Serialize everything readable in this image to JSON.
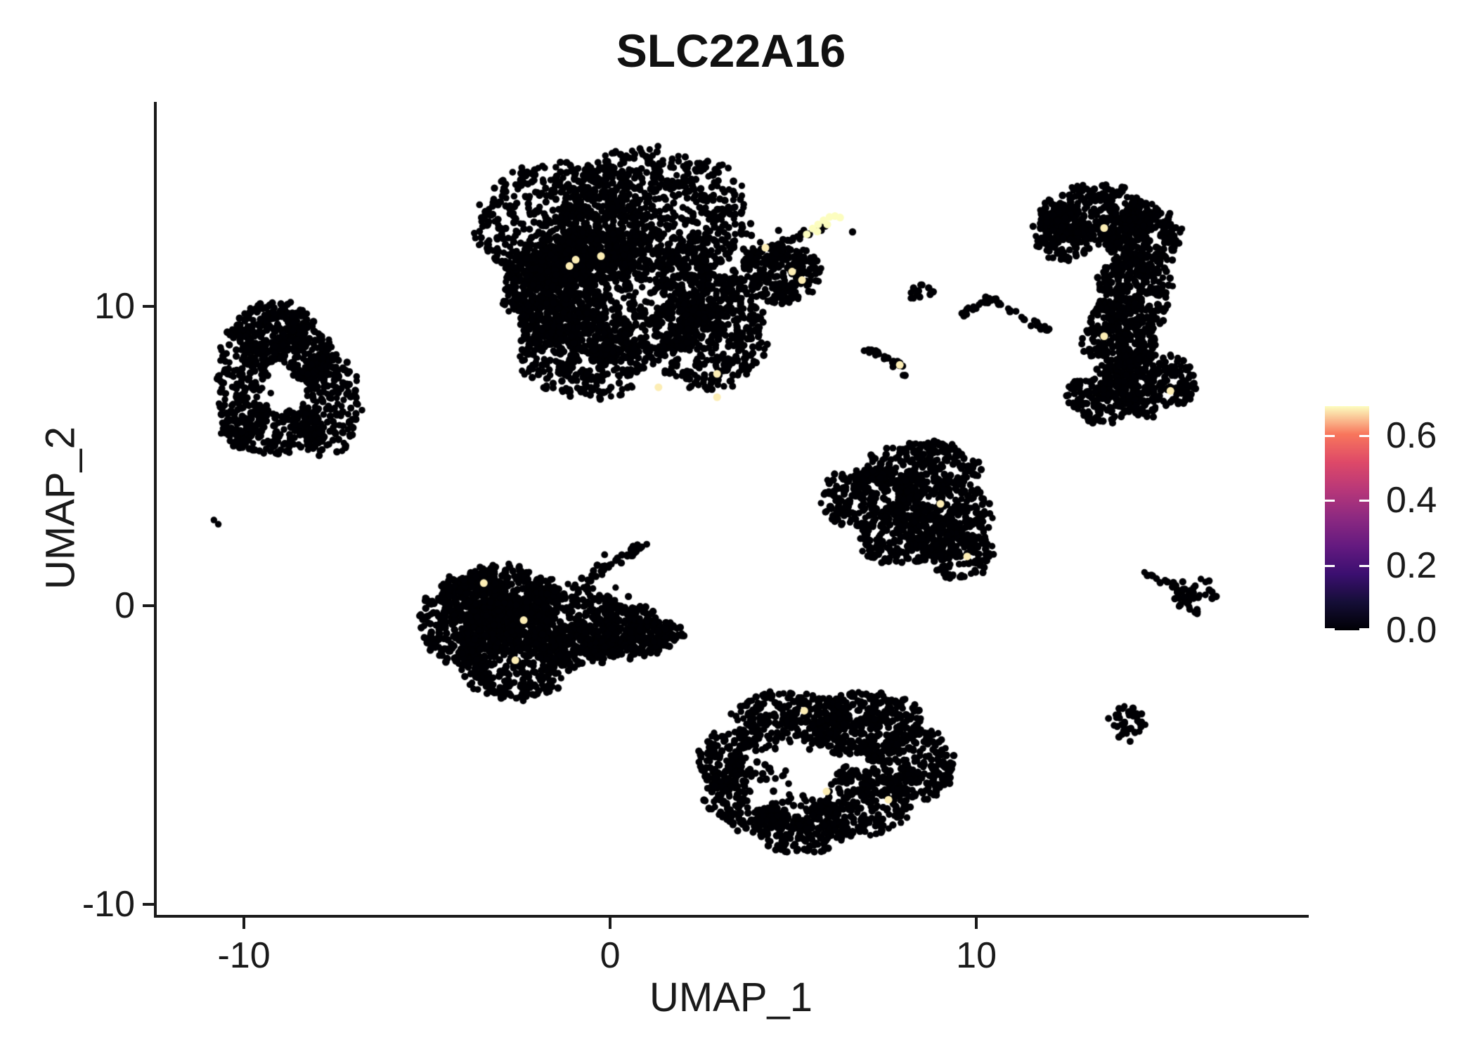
{
  "title": "SLC22A16",
  "axes": {
    "xlabel": "UMAP_1",
    "ylabel": "UMAP_2",
    "xticks": [
      -10,
      0,
      10
    ],
    "yticks": [
      -10,
      0,
      10
    ],
    "xlim": [
      -12.4,
      19.0
    ],
    "ylim": [
      -10.35,
      16.85
    ]
  },
  "colorbar": {
    "tick_labels": [
      "0.6",
      "0.4",
      "0.2",
      "0.0"
    ],
    "tick_values": [
      0.6,
      0.4,
      0.2,
      0.0
    ],
    "vmin": 0.0,
    "vmax": 0.69,
    "gradient": [
      "#000004",
      "#150e37",
      "#3b0f70",
      "#641a80",
      "#8c2981",
      "#b73779",
      "#de4968",
      "#f8765c",
      "#fcfdbf"
    ]
  },
  "chart_data": {
    "type": "scatter",
    "title": "SLC22A16",
    "xlabel": "UMAP_1",
    "ylabel": "UMAP_2",
    "xlim": [
      -12.4,
      19.0
    ],
    "ylim": [
      -10.35,
      16.85
    ],
    "legend": "continuous colorbar, right side",
    "grid": false,
    "point_color_zero": "#000004",
    "point_radius_px": 5,
    "highlight_radius_px": 5.5,
    "clusters": [
      {
        "name": "top-main-blob",
        "ellipses": [
          [
            -1.3,
            12.7,
            2.3,
            2.0,
            600
          ],
          [
            1.2,
            13.0,
            2.5,
            2.2,
            700
          ],
          [
            0.2,
            10.4,
            2.9,
            2.1,
            800
          ],
          [
            2.7,
            9.2,
            1.5,
            1.9,
            450
          ],
          [
            -1.7,
            10.6,
            1.1,
            1.7,
            350
          ],
          [
            -0.6,
            8.4,
            1.8,
            1.4,
            380
          ]
        ],
        "paths": [
          [
            4.4,
            11.9,
            6.3,
            12.95,
            0.22,
            26
          ]
        ],
        "singles": [
          [
            2.0,
            14.7
          ],
          [
            2.3,
            13.9
          ],
          [
            2.6,
            13.3
          ],
          [
            3.0,
            12.6
          ],
          [
            3.4,
            12.2
          ],
          [
            6.62,
            12.5
          ],
          [
            4.6,
            12.55
          ],
          [
            5.0,
            12.3
          ],
          [
            3.7,
            11.6
          ]
        ]
      },
      {
        "name": "top-right-lobe",
        "ellipses": [
          [
            4.6,
            11.05,
            1.15,
            0.95,
            260
          ]
        ],
        "singles": [
          [
            3.9,
            11.95
          ],
          [
            4.1,
            12.15
          ]
        ]
      },
      {
        "name": "left-cluster",
        "ellipses": [
          [
            -9.2,
            9.2,
            1.05,
            0.95,
            200
          ],
          [
            -10.0,
            7.4,
            0.75,
            2.1,
            220
          ],
          [
            -9.2,
            5.9,
            1.35,
            0.85,
            220
          ],
          [
            -7.75,
            6.7,
            0.9,
            1.6,
            220
          ],
          [
            -8.35,
            8.4,
            0.85,
            0.85,
            160
          ]
        ],
        "holes": [
          [
            -8.9,
            7.1,
            0.62,
            0.12
          ]
        ],
        "singles": [
          [
            -8.1,
            9.5
          ]
        ]
      },
      {
        "name": "tiny-pair-left",
        "singles": [
          [
            -10.82,
            2.86
          ],
          [
            -10.7,
            2.72
          ]
        ]
      },
      {
        "name": "center-left-cluster",
        "ellipses": [
          [
            -3.8,
            -0.5,
            1.3,
            1.5,
            420
          ],
          [
            -2.6,
            -1.5,
            1.5,
            1.7,
            500
          ],
          [
            -2.9,
            0.3,
            1.5,
            1.0,
            360
          ],
          [
            -1.1,
            -0.7,
            1.6,
            1.3,
            420
          ],
          [
            0.3,
            -0.9,
            1.3,
            0.9,
            260
          ],
          [
            1.3,
            -0.9,
            0.7,
            0.5,
            90
          ]
        ],
        "paths": [
          [
            -0.7,
            0.8,
            0.85,
            2.0,
            0.16,
            40
          ]
        ],
        "singles": [
          [
            -0.35,
            1.35
          ],
          [
            0.15,
            0.6
          ],
          [
            0.5,
            0.3
          ],
          [
            1.0,
            2.05
          ],
          [
            -0.15,
            1.7
          ]
        ]
      },
      {
        "name": "center-right-triangle",
        "ellipses": [
          [
            8.5,
            4.6,
            1.5,
            0.85,
            260
          ],
          [
            7.0,
            3.6,
            1.25,
            0.95,
            230
          ],
          [
            9.1,
            3.1,
            1.25,
            1.05,
            260
          ],
          [
            8.0,
            2.3,
            1.2,
            0.9,
            230
          ],
          [
            9.6,
            1.7,
            0.8,
            0.8,
            130
          ]
        ],
        "singles": [
          [
            9.35,
            1.0
          ],
          [
            9.6,
            0.95
          ],
          [
            9.15,
            1.15
          ],
          [
            8.85,
            5.5
          ]
        ]
      },
      {
        "name": "right-large-cluster",
        "ellipses": [
          [
            13.3,
            13.0,
            1.55,
            1.0,
            330
          ],
          [
            12.4,
            12.5,
            0.8,
            0.9,
            150
          ],
          [
            14.5,
            12.3,
            1.05,
            1.1,
            240
          ],
          [
            14.3,
            10.5,
            1.0,
            1.3,
            260
          ],
          [
            13.9,
            9.0,
            0.95,
            1.25,
            250
          ],
          [
            14.7,
            7.4,
            1.25,
            1.0,
            260
          ],
          [
            13.5,
            7.0,
            0.95,
            0.85,
            160
          ]
        ]
      },
      {
        "name": "small-blob-mid",
        "ellipses": [
          [
            8.5,
            10.45,
            0.32,
            0.28,
            14
          ]
        ]
      },
      {
        "name": "arc-chain-mid",
        "paths": [
          [
            9.55,
            9.7,
            10.4,
            10.28,
            0.14,
            22
          ],
          [
            10.4,
            10.28,
            11.95,
            9.15,
            0.15,
            26
          ]
        ]
      },
      {
        "name": "small-chain-with-highlight",
        "paths": [
          [
            6.9,
            8.55,
            7.6,
            8.3,
            0.16,
            16
          ],
          [
            7.6,
            8.3,
            8.15,
            7.7,
            0.16,
            14
          ]
        ]
      },
      {
        "name": "bottom-cluster",
        "ellipses": [
          [
            4.9,
            -3.9,
            1.5,
            1.0,
            300
          ],
          [
            7.0,
            -4.0,
            1.5,
            1.05,
            330
          ],
          [
            8.3,
            -5.3,
            1.05,
            1.15,
            240
          ],
          [
            6.8,
            -6.6,
            1.3,
            1.15,
            280
          ],
          [
            5.2,
            -7.3,
            1.2,
            0.95,
            220
          ],
          [
            3.9,
            -6.3,
            1.25,
            1.2,
            240
          ],
          [
            3.3,
            -5.2,
            0.85,
            1.0,
            150
          ]
        ],
        "sparse": [
          [
            4.9,
            -5.6,
            1.25,
            0.25
          ]
        ]
      },
      {
        "name": "arrow-comet-right",
        "ellipses": [
          [
            16.0,
            0.3,
            0.55,
            0.62,
            40
          ]
        ],
        "paths": [
          [
            14.45,
            1.1,
            15.5,
            0.62,
            0.13,
            12
          ]
        ]
      },
      {
        "name": "small-round-bottom-right",
        "ellipses": [
          [
            14.1,
            -3.95,
            0.48,
            0.56,
            40
          ]
        ]
      }
    ],
    "highlighted_points": [
      {
        "x": -1.11,
        "y": 11.36,
        "value": 0.68
      },
      {
        "x": -0.94,
        "y": 11.57,
        "value": 0.68
      },
      {
        "x": -0.25,
        "y": 11.69,
        "value": 0.68
      },
      {
        "x": 4.24,
        "y": 11.97,
        "value": 0.68
      },
      {
        "x": 4.97,
        "y": 11.17,
        "value": 0.68
      },
      {
        "x": 5.24,
        "y": 10.89,
        "value": 0.68
      },
      {
        "x": 5.37,
        "y": 12.42,
        "value": 0.69
      },
      {
        "x": 5.53,
        "y": 12.61,
        "value": 0.69
      },
      {
        "x": 5.68,
        "y": 12.75,
        "value": 0.69
      },
      {
        "x": 5.83,
        "y": 12.89,
        "value": 0.69
      },
      {
        "x": 5.99,
        "y": 13.0,
        "value": 0.69
      },
      {
        "x": 6.14,
        "y": 13.03,
        "value": 0.69
      },
      {
        "x": 6.28,
        "y": 12.98,
        "value": 0.69
      },
      {
        "x": 5.93,
        "y": 12.75,
        "value": 0.69
      },
      {
        "x": 5.66,
        "y": 12.51,
        "value": 0.69
      },
      {
        "x": 1.32,
        "y": 7.3,
        "value": 0.68
      },
      {
        "x": 2.92,
        "y": 7.75,
        "value": 0.68
      },
      {
        "x": 2.92,
        "y": 6.97,
        "value": 0.68
      },
      {
        "x": 7.91,
        "y": 8.05,
        "value": 0.68
      },
      {
        "x": 9.02,
        "y": 3.4,
        "value": 0.68
      },
      {
        "x": 9.75,
        "y": 1.64,
        "value": 0.68
      },
      {
        "x": 13.49,
        "y": 12.63,
        "value": 0.68
      },
      {
        "x": 13.49,
        "y": 9.01,
        "value": 0.68
      },
      {
        "x": 15.3,
        "y": 7.18,
        "value": 0.68
      },
      {
        "x": 5.3,
        "y": -3.52,
        "value": 0.68
      },
      {
        "x": 5.91,
        "y": -6.22,
        "value": 0.68
      },
      {
        "x": 7.6,
        "y": -6.5,
        "value": 0.68
      },
      {
        "x": -3.45,
        "y": 0.75,
        "value": 0.68
      },
      {
        "x": -2.36,
        "y": -0.49,
        "value": 0.68
      },
      {
        "x": -2.59,
        "y": -1.83,
        "value": 0.68
      }
    ]
  }
}
